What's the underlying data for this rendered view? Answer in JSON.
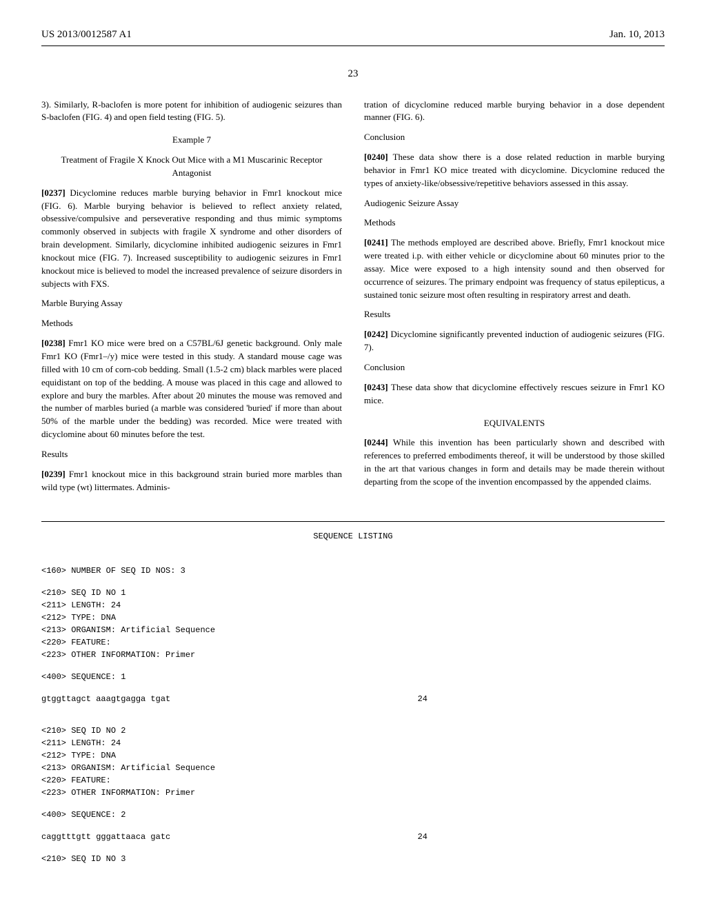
{
  "header": {
    "pub_number": "US 2013/0012587 A1",
    "pub_date": "Jan. 10, 2013"
  },
  "page_number": "23",
  "left_col": {
    "intro": "3). Similarly, R-baclofen is more potent for inhibition of audiogenic seizures than S-baclofen (FIG. 4) and open field testing (FIG. 5).",
    "example_label": "Example 7",
    "example_title": "Treatment of Fragile X Knock Out Mice with a M1 Muscarinic Receptor Antagonist",
    "p0237_num": "[0237]",
    "p0237": " Dicyclomine reduces marble burying behavior in Fmr1 knockout mice (FIG. 6). Marble burying behavior is believed to reflect anxiety related, obsessive/compulsive and perseverative responding and thus mimic symptoms commonly observed in subjects with fragile X syndrome and other disorders of brain development. Similarly, dicyclomine inhibited audiogenic seizures in Fmr1 knockout mice (FIG. 7). Increased susceptibility to audiogenic seizures in Fmr1 knockout mice is believed to model the increased prevalence of seizure disorders in subjects with FXS.",
    "marble_h": "Marble Burying Assay",
    "methods_h": "Methods",
    "p0238_num": "[0238]",
    "p0238": " Fmr1 KO mice were bred on a C57BL/6J genetic background. Only male Fmr1 KO (Fmr1–/y) mice were tested in this study. A standard mouse cage was filled with 10 cm of corn-cob bedding. Small (1.5-2 cm) black marbles were placed equidistant on top of the bedding. A mouse was placed in this cage and allowed to explore and bury the marbles. After about 20 minutes the mouse was removed and the number of marbles buried (a marble was considered 'buried' if more than about 50% of the marble under the bedding) was recorded. Mice were treated with dicyclomine about 60 minutes before the test.",
    "results_h": "Results",
    "p0239_num": "[0239]",
    "p0239": " Fmr1 knockout mice in this background strain buried more marbles than wild type (wt) littermates. Adminis-"
  },
  "right_col": {
    "cont": "tration of dicyclomine reduced marble burying behavior in a dose dependent manner (FIG. 6).",
    "conclusion_h": "Conclusion",
    "p0240_num": "[0240]",
    "p0240": " These data show there is a dose related reduction in marble burying behavior in Fmr1 KO mice treated with dicyclomine. Dicyclomine reduced the types of anxiety-like/obsessive/repetitive behaviors assessed in this assay.",
    "audio_h": "Audiogenic Seizure Assay",
    "methods_h": "Methods",
    "p0241_num": "[0241]",
    "p0241": " The methods employed are described above. Briefly, Fmr1 knockout mice were treated i.p. with either vehicle or dicyclomine about 60 minutes prior to the assay. Mice were exposed to a high intensity sound and then observed for occurrence of seizures. The primary endpoint was frequency of status epilepticus, a sustained tonic seizure most often resulting in respiratory arrest and death.",
    "results_h": "Results",
    "p0242_num": "[0242]",
    "p0242": " Dicyclomine significantly prevented induction of audiogenic seizures (FIG. 7).",
    "conclusion2_h": "Conclusion",
    "p0243_num": "[0243]",
    "p0243": " These data show that dicyclomine effectively rescues seizure in Fmr1 KO mice.",
    "equiv_h": "EQUIVALENTS",
    "p0244_num": "[0244]",
    "p0244": " While this invention has been particularly shown and described with references to preferred embodiments thereof, it will be understood by those skilled in the art that various changes in form and details may be made therein without departing from the scope of the invention encompassed by the appended claims."
  },
  "seq": {
    "title": "SEQUENCE LISTING",
    "l1": "<160> NUMBER OF SEQ ID NOS: 3",
    "l2": "<210> SEQ ID NO 1",
    "l3": "<211> LENGTH: 24",
    "l4": "<212> TYPE: DNA",
    "l5": "<213> ORGANISM: Artificial Sequence",
    "l6": "<220> FEATURE:",
    "l7": "<223> OTHER INFORMATION: Primer",
    "l8": "<400> SEQUENCE: 1",
    "seq1_data": "gtggttagct aaagtgagga tgat",
    "seq1_len": "24",
    "l9": "<210> SEQ ID NO 2",
    "l10": "<211> LENGTH: 24",
    "l11": "<212> TYPE: DNA",
    "l12": "<213> ORGANISM: Artificial Sequence",
    "l13": "<220> FEATURE:",
    "l14": "<223> OTHER INFORMATION: Primer",
    "l15": "<400> SEQUENCE: 2",
    "seq2_data": "caggtttgtt gggattaaca gatc",
    "seq2_len": "24",
    "l16": "<210> SEQ ID NO 3"
  }
}
